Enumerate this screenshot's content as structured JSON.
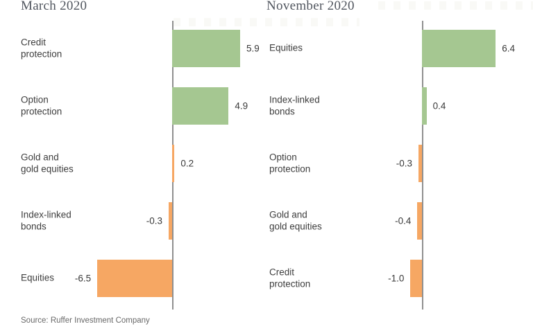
{
  "figure": {
    "source": "Source: Ruffer Investment Company"
  },
  "colors": {
    "positive_green": "#a5c791",
    "negative_orange": "#f6a763",
    "axis_gray": "#8f8f8f",
    "title_gray": "#50555e",
    "text_dark": "#3d3d3d"
  },
  "chart_data": [
    {
      "type": "bar",
      "orientation": "horizontal",
      "title": "March 2020",
      "categories": [
        "Credit protection",
        "Option protection",
        "Gold and gold equities",
        "Index-linked bonds",
        "Equities"
      ],
      "category_labels": [
        "Credit\nprotection",
        "Option\nprotection",
        "Gold and\ngold equities",
        "Index-linked\nbonds",
        "Equities"
      ],
      "values": [
        5.9,
        4.9,
        0.2,
        -0.3,
        -6.5
      ],
      "value_labels": [
        "5.9",
        "4.9",
        "0.2",
        "-0.3",
        "-6.5"
      ],
      "bar_colors": [
        "#a5c791",
        "#a5c791",
        "#f6a763",
        "#f6a763",
        "#f6a763"
      ],
      "xlim": [
        -7,
        7.5
      ],
      "grid": false,
      "legend": false,
      "value_axis_ticks_shown": false
    },
    {
      "type": "bar",
      "orientation": "horizontal",
      "title": "November 2020",
      "categories": [
        "Equities",
        "Index-linked bonds",
        "Option protection",
        "Gold and gold equities",
        "Credit protection"
      ],
      "category_labels": [
        "Equities",
        "Index-linked\nbonds",
        "Option\nprotection",
        "Gold and\ngold equities",
        "Credit\nprotection"
      ],
      "values": [
        6.4,
        0.4,
        -0.3,
        -0.4,
        -1.0
      ],
      "value_labels": [
        "6.4",
        "0.4",
        "-0.3",
        "-0.4",
        "-1.0"
      ],
      "bar_colors": [
        "#a5c791",
        "#a5c791",
        "#f6a763",
        "#f6a763",
        "#f6a763"
      ],
      "xlim": [
        -2,
        8
      ],
      "grid": false,
      "legend": false,
      "value_axis_ticks_shown": false
    }
  ]
}
